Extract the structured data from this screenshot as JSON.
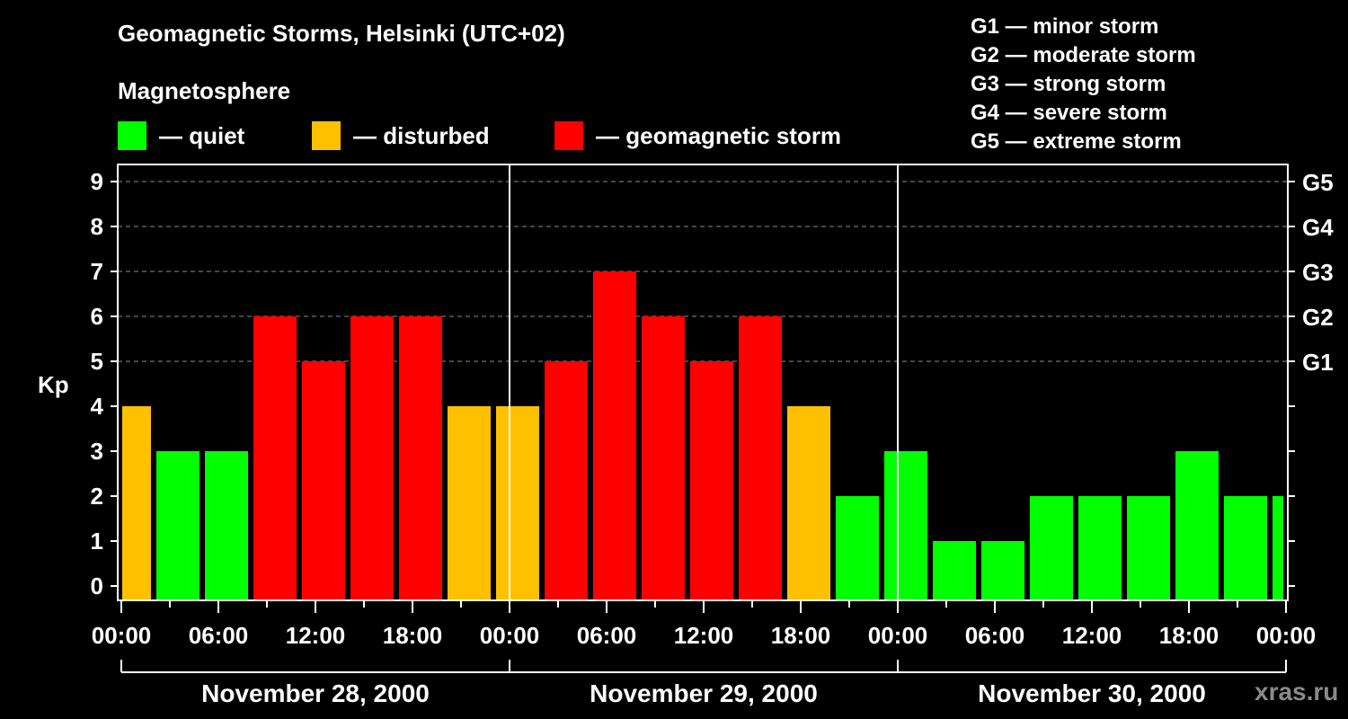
{
  "header": {
    "title": "Geomagnetic Storms, Helsinki (UTC+02)",
    "subtitle": "Magnetosphere"
  },
  "legend": {
    "items": [
      {
        "label": "— quiet",
        "color": "#00ff00"
      },
      {
        "label": "— disturbed",
        "color": "#ffc000"
      },
      {
        "label": "— geomagnetic storm",
        "color": "#ff0000"
      }
    ]
  },
  "storm_scale": {
    "items": [
      "G1 — minor storm",
      "G2 — moderate storm",
      "G3 — strong storm",
      "G4 — severe storm",
      "G5 — extreme storm"
    ]
  },
  "watermark": "xras.ru",
  "chart_data": {
    "type": "bar",
    "title": "Geomagnetic Storms, Helsinki (UTC+02)",
    "ylabel": "Kp",
    "xlabel": "",
    "ylim": [
      0,
      9
    ],
    "yticks": [
      0,
      1,
      2,
      3,
      4,
      5,
      6,
      7,
      8,
      9
    ],
    "right_ticks": [
      {
        "value": 5,
        "label": "G1"
      },
      {
        "value": 6,
        "label": "G2"
      },
      {
        "value": 7,
        "label": "G3"
      },
      {
        "value": 8,
        "label": "G4"
      },
      {
        "value": 9,
        "label": "G5"
      }
    ],
    "grid": "dashed horizontal at 5-9",
    "xtick_labels": [
      "00:00",
      "06:00",
      "12:00",
      "18:00",
      "00:00",
      "06:00",
      "12:00",
      "18:00",
      "00:00",
      "06:00",
      "12:00",
      "18:00",
      "00:00"
    ],
    "days": [
      "November 28, 2000",
      "November 29, 2000",
      "November 30, 2000"
    ],
    "interval_hours": 3,
    "first_bar_start_local": "November 28, 2000 02:00 (partial, from 00:00)",
    "bars": [
      {
        "start_h": 0,
        "end_h": 2,
        "kp": 4,
        "level": "disturbed"
      },
      {
        "start_h": 2,
        "end_h": 5,
        "kp": 3,
        "level": "quiet"
      },
      {
        "start_h": 5,
        "end_h": 8,
        "kp": 3,
        "level": "quiet"
      },
      {
        "start_h": 8,
        "end_h": 11,
        "kp": 6,
        "level": "storm"
      },
      {
        "start_h": 11,
        "end_h": 14,
        "kp": 5,
        "level": "storm"
      },
      {
        "start_h": 14,
        "end_h": 17,
        "kp": 6,
        "level": "storm"
      },
      {
        "start_h": 17,
        "end_h": 20,
        "kp": 6,
        "level": "storm"
      },
      {
        "start_h": 20,
        "end_h": 23,
        "kp": 4,
        "level": "disturbed"
      },
      {
        "start_h": 23,
        "end_h": 26,
        "kp": 4,
        "level": "disturbed"
      },
      {
        "start_h": 26,
        "end_h": 29,
        "kp": 5,
        "level": "storm"
      },
      {
        "start_h": 29,
        "end_h": 32,
        "kp": 7,
        "level": "storm"
      },
      {
        "start_h": 32,
        "end_h": 35,
        "kp": 6,
        "level": "storm"
      },
      {
        "start_h": 35,
        "end_h": 38,
        "kp": 5,
        "level": "storm"
      },
      {
        "start_h": 38,
        "end_h": 41,
        "kp": 6,
        "level": "storm"
      },
      {
        "start_h": 41,
        "end_h": 44,
        "kp": 4,
        "level": "disturbed"
      },
      {
        "start_h": 44,
        "end_h": 47,
        "kp": 2,
        "level": "quiet"
      },
      {
        "start_h": 47,
        "end_h": 50,
        "kp": 3,
        "level": "quiet"
      },
      {
        "start_h": 50,
        "end_h": 53,
        "kp": 1,
        "level": "quiet"
      },
      {
        "start_h": 53,
        "end_h": 56,
        "kp": 1,
        "level": "quiet"
      },
      {
        "start_h": 56,
        "end_h": 59,
        "kp": 2,
        "level": "quiet"
      },
      {
        "start_h": 59,
        "end_h": 62,
        "kp": 2,
        "level": "quiet"
      },
      {
        "start_h": 62,
        "end_h": 65,
        "kp": 2,
        "level": "quiet"
      },
      {
        "start_h": 65,
        "end_h": 68,
        "kp": 3,
        "level": "quiet"
      },
      {
        "start_h": 68,
        "end_h": 71,
        "kp": 2,
        "level": "quiet"
      },
      {
        "start_h": 71,
        "end_h": 72,
        "kp": 2,
        "level": "quiet"
      }
    ],
    "colors": {
      "quiet": "#00ff00",
      "disturbed": "#ffc000",
      "storm": "#ff0000",
      "grid": "#8c8c8c",
      "axis": "#ffffff"
    }
  }
}
